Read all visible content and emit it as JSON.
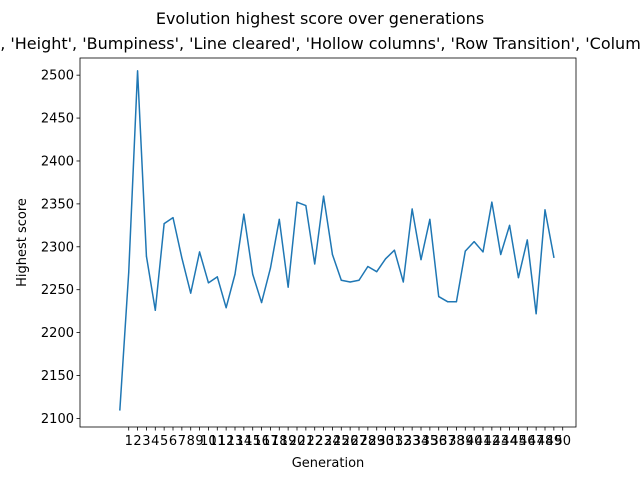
{
  "chart_data": {
    "type": "line",
    "title": "Evolution highest score over generations",
    "subtitle": "['Max height', 'Height', 'Bumpiness', 'Line cleared', 'Hollow columns', 'Row Transition', 'Column Transition']",
    "xlabel": "Generation",
    "ylabel": "Highest score",
    "xlim": [
      -4.5,
      51.5
    ],
    "ylim": [
      2090,
      2520
    ],
    "grid": false,
    "line_color": "#1f77b4",
    "x_ticks": [
      1,
      2,
      3,
      4,
      5,
      6,
      7,
      8,
      9,
      10,
      11,
      12,
      13,
      14,
      15,
      16,
      17,
      18,
      19,
      20,
      21,
      22,
      23,
      24,
      25,
      26,
      27,
      28,
      29,
      30,
      31,
      32,
      33,
      34,
      35,
      36,
      37,
      38,
      39,
      40,
      41,
      42,
      43,
      44,
      45,
      46,
      47,
      48,
      49,
      50
    ],
    "y_ticks": [
      2100,
      2150,
      2200,
      2250,
      2300,
      2350,
      2400,
      2450,
      2500
    ],
    "series": [
      {
        "x": [
          0,
          1,
          2,
          3,
          4,
          5,
          6,
          7,
          8,
          9,
          10,
          11,
          12,
          13,
          14,
          15,
          16,
          17,
          18,
          19,
          20,
          21,
          22,
          23,
          24,
          25,
          26,
          27,
          28,
          29,
          30,
          31,
          32,
          33,
          34,
          35,
          36,
          37,
          38,
          39,
          40,
          41,
          42,
          43,
          44,
          45,
          46,
          47,
          48,
          49
        ],
        "values": [
          2110,
          2270,
          2505,
          2289,
          2226,
          2327,
          2334,
          2287,
          2246,
          2294,
          2258,
          2265,
          2229,
          2268,
          2338,
          2268,
          2235,
          2275,
          2332,
          2253,
          2352,
          2348,
          2280,
          2359,
          2291,
          2261,
          2259,
          2261,
          2277,
          2271,
          2286,
          2296,
          2259,
          2344,
          2285,
          2332,
          2242,
          2236,
          2236,
          2295,
          2306,
          2294,
          2352,
          2291,
          2325,
          2264,
          2308,
          2222,
          2343,
          2288
        ]
      }
    ]
  }
}
